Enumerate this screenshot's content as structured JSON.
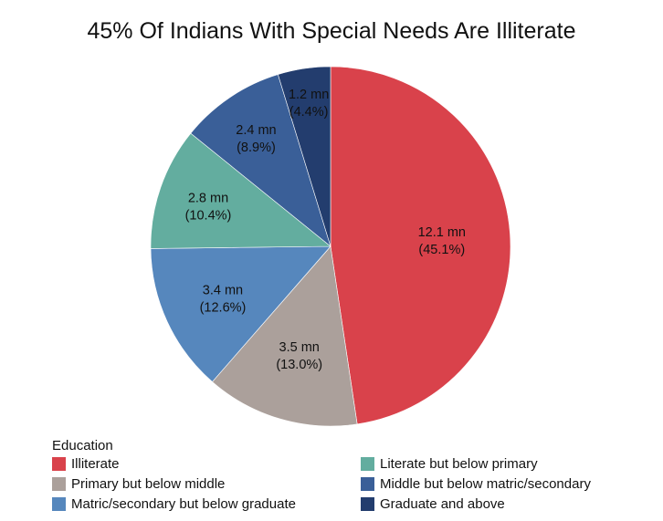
{
  "chart_data": {
    "type": "pie",
    "title": "45% Of Indians With Special Needs Are Illiterate",
    "legend_title": "Education",
    "legend_position": "bottom",
    "slices": [
      {
        "name": "Illiterate",
        "value": 12.1,
        "value_label": "12.1 mn",
        "pct_label": "(45.1%)",
        "color": "#d9424b"
      },
      {
        "name": "Primary but below middle",
        "value": 3.5,
        "value_label": "3.5 mn",
        "pct_label": "(13.0%)",
        "color": "#aba09b"
      },
      {
        "name": "Matric/secondary but below graduate",
        "value": 3.4,
        "value_label": "3.4 mn",
        "pct_label": "(12.6%)",
        "color": "#5687bd"
      },
      {
        "name": "Literate but below primary",
        "value": 2.8,
        "value_label": "2.8 mn",
        "pct_label": "(10.4%)",
        "color": "#63ad9f"
      },
      {
        "name": "Middle but below matric/secondary",
        "value": 2.4,
        "value_label": "2.4 mn",
        "pct_label": "(8.9%)",
        "color": "#3a5f98"
      },
      {
        "name": "Graduate and above",
        "value": 1.2,
        "value_label": "1.2 mn",
        "pct_label": "(4.4%)",
        "color": "#233d6e"
      }
    ],
    "legend_order": [
      "Illiterate",
      "Literate but below primary",
      "Primary but below middle",
      "Middle but below matric/secondary",
      "Matric/secondary but below graduate",
      "Graduate and above"
    ]
  }
}
